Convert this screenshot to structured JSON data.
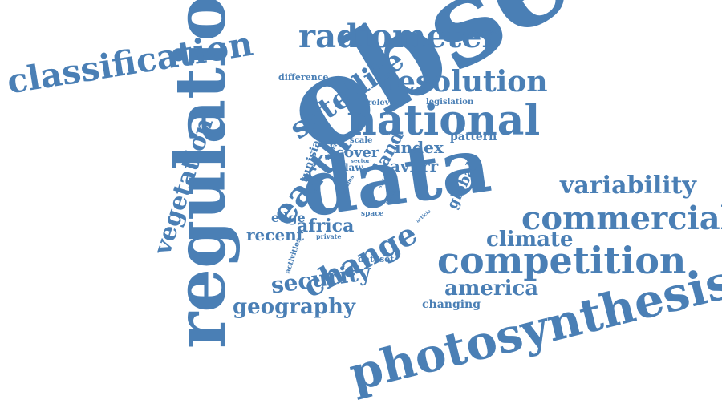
{
  "color": "#4a7fb5",
  "words": [
    "observation",
    "regulation",
    "data",
    "photosynthesis",
    "national",
    "competition",
    "commercial",
    "classification",
    "radiometer",
    "resolution",
    "satellite",
    "earth",
    "change",
    "vegetation",
    "variability",
    "security",
    "climate",
    "geography",
    "america",
    "africa",
    "avhrr",
    "index",
    "land",
    "cover",
    "global",
    "recent",
    "edge",
    "pattern",
    "dataset",
    "changing",
    "tunisia",
    "difference",
    "relevant",
    "legislation",
    "scale",
    "law",
    "human",
    "sector",
    "gimms",
    "space",
    "private",
    "activities",
    "state",
    "result",
    "article"
  ]
}
